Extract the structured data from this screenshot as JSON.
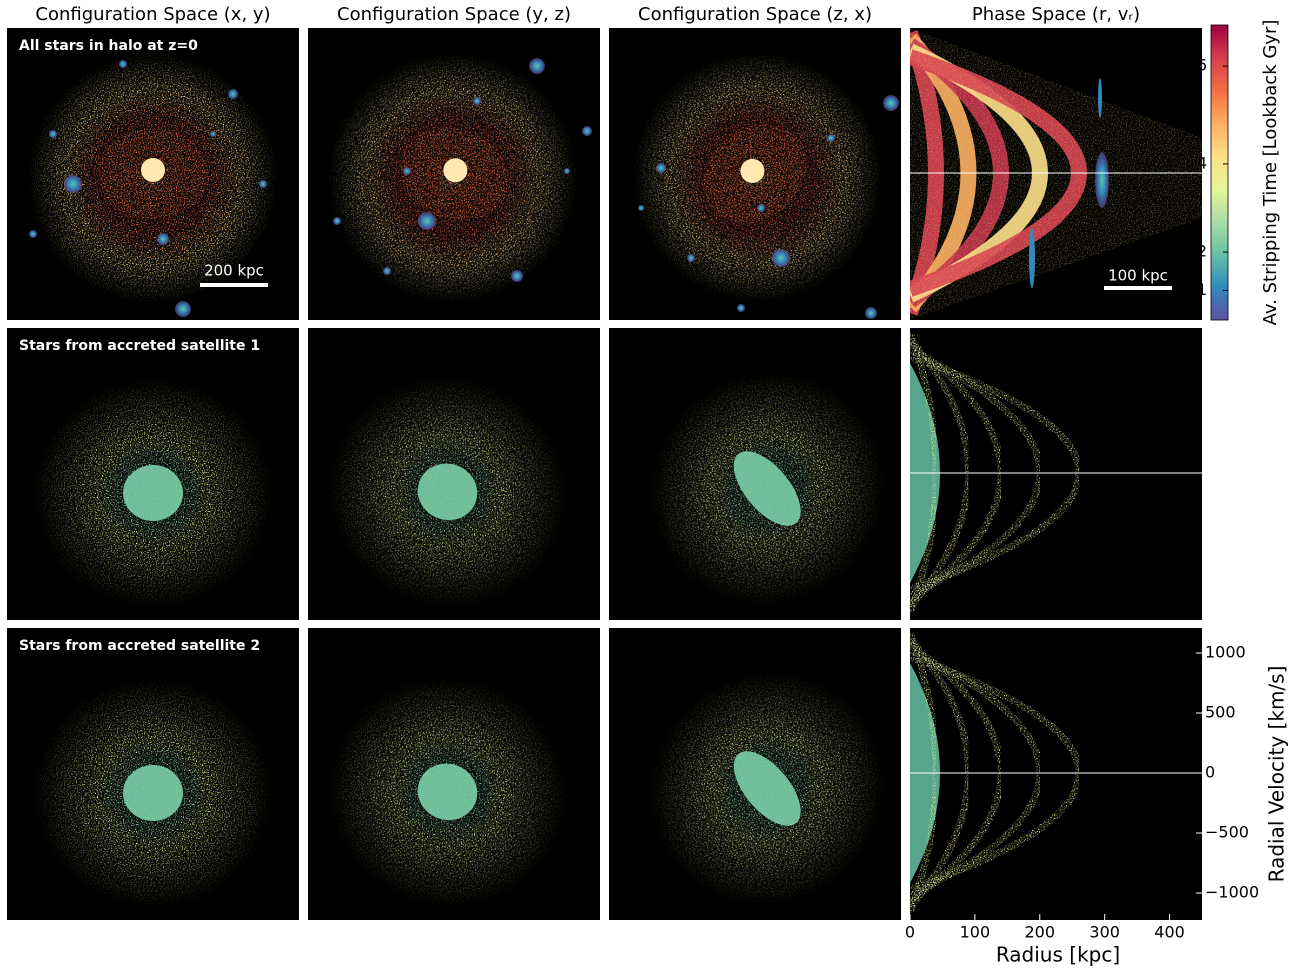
{
  "chart_data": {
    "type": "image-grid",
    "column_titles": [
      "Configuration Space (x, y)",
      "Configuration Space (y, z)",
      "Configuration Space (z, x)",
      "Phase Space (r, vᵣ)"
    ],
    "row_labels": [
      "All stars in halo at z=0",
      "Stars from accreted satellite 1",
      "Stars from accreted satellite 2"
    ],
    "scale_bars": [
      "200 kpc",
      "100 kpc"
    ],
    "colorbar": {
      "label": "Av. Stripping Time [Lookback Gyr]",
      "clim": [
        0,
        6.8
      ],
      "gamma": 1.2,
      "ticks": [
        1,
        2,
        4,
        6
      ],
      "colors": [
        "#5e4fa2",
        "#3288bd",
        "#66c2a5",
        "#abdda4",
        "#e6f598",
        "#fee08b",
        "#fdae61",
        "#f46d43",
        "#d53e4f",
        "#9e0142"
      ]
    },
    "xlabel": "Radius [kpc]",
    "xlim": [
      0,
      450
    ],
    "xticks": [
      0,
      100,
      200,
      300,
      400
    ],
    "ylabel": "Radial Velocity [km/s]",
    "ylim": [
      -1225,
      1208
    ],
    "yticks": [
      {
        "value": -1000,
        "label": "−1000"
      },
      {
        "value": -500,
        "label": "−500"
      },
      0,
      500,
      1000
    ]
  }
}
